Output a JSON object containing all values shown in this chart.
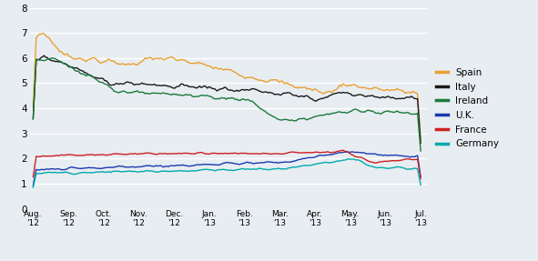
{
  "title": "",
  "ylim": [
    0,
    8
  ],
  "yticks": [
    0,
    1,
    2,
    3,
    4,
    5,
    6,
    7,
    8
  ],
  "background_color": "#e8edf2",
  "plot_bg_color": "#e8edf2",
  "grid_color": "#ffffff",
  "legend_labels": [
    "Spain",
    "Italy",
    "Ireland",
    "U.K.",
    "France",
    "Germany"
  ],
  "legend_colors": [
    "#e8a030",
    "#1a1a1a",
    "#1a7a3a",
    "#1a3ab0",
    "#cc2020",
    "#00aaaa"
  ],
  "x_tick_labels": [
    "Aug.\n'12",
    "Sep.\n'12",
    "Oct.\n'12",
    "Nov.\n'12",
    "Dec.\n'12",
    "Jan.\n'13",
    "Feb.\n'13",
    "Mar.\n'13",
    "Apr.\n'13",
    "May.\n'13",
    "Jun.\n'13",
    "Jul.\n'13"
  ],
  "n_points": 250
}
